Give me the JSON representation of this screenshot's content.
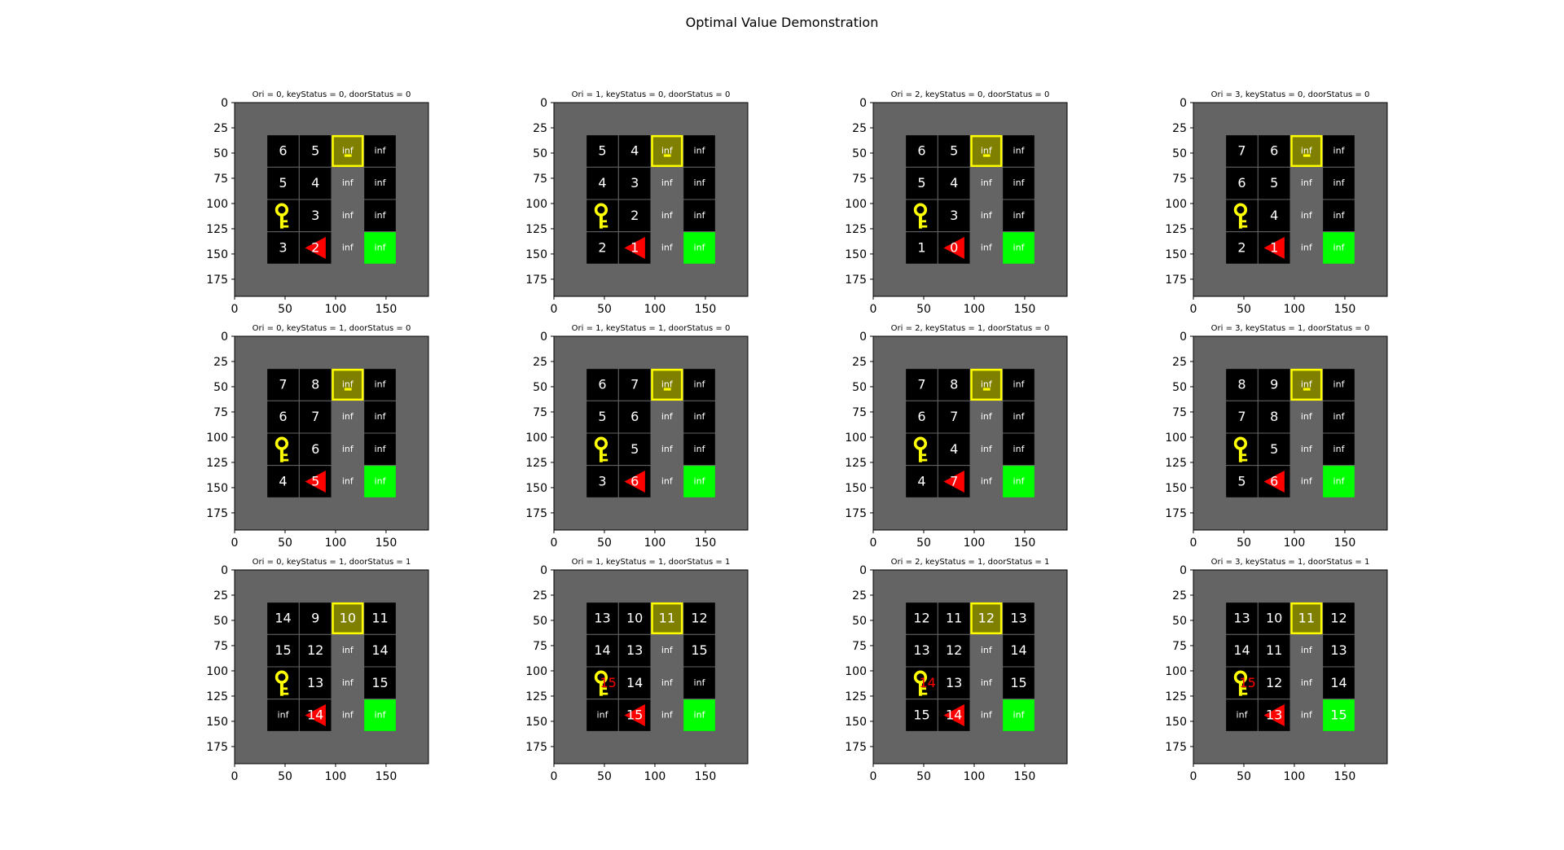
{
  "figure": {
    "title": "Optimal Value Demonstration"
  },
  "colors": {
    "background": "#ffffff",
    "wall": "#646464",
    "floor": "#000000",
    "grid_line": "#646464",
    "door_fill": "#7f7f00",
    "door_border": "#ffff00",
    "goal": "#00ff00",
    "agent": "#ff0000",
    "key": "#ffff00",
    "text_white": "#ffffff",
    "text_red": "#ff0000"
  },
  "axes": {
    "xticks": [
      "0",
      "50",
      "100",
      "150"
    ],
    "yticks": [
      "0",
      "25",
      "50",
      "75",
      "100",
      "125",
      "150",
      "175"
    ],
    "xlim": [
      0,
      192
    ],
    "ylim": [
      192,
      0
    ]
  },
  "chart_data": [
    {
      "type": "heatmap",
      "title": "Ori = 0, keyStatus = 0, doorStatus = 0",
      "orientation": 0,
      "values": [
        [
          "6",
          "5",
          "inf",
          "inf"
        ],
        [
          "5",
          "4",
          "inf",
          "inf"
        ],
        [
          "",
          "3",
          "inf",
          "inf"
        ],
        [
          "3",
          "2",
          "inf",
          "inf"
        ]
      ]
    },
    {
      "type": "heatmap",
      "title": "Ori = 1, keyStatus = 0, doorStatus = 0",
      "orientation": 1,
      "values": [
        [
          "5",
          "4",
          "inf",
          "inf"
        ],
        [
          "4",
          "3",
          "inf",
          "inf"
        ],
        [
          "",
          "2",
          "inf",
          "inf"
        ],
        [
          "2",
          "1",
          "inf",
          "inf"
        ]
      ]
    },
    {
      "type": "heatmap",
      "title": "Ori = 2, keyStatus = 0, doorStatus = 0",
      "orientation": 2,
      "values": [
        [
          "6",
          "5",
          "inf",
          "inf"
        ],
        [
          "5",
          "4",
          "inf",
          "inf"
        ],
        [
          "",
          "3",
          "inf",
          "inf"
        ],
        [
          "1",
          "0",
          "inf",
          "inf"
        ]
      ]
    },
    {
      "type": "heatmap",
      "title": "Ori = 3, keyStatus = 0, doorStatus = 0",
      "orientation": 3,
      "values": [
        [
          "7",
          "6",
          "inf",
          "inf"
        ],
        [
          "6",
          "5",
          "inf",
          "inf"
        ],
        [
          "",
          "4",
          "inf",
          "inf"
        ],
        [
          "2",
          "1",
          "inf",
          "inf"
        ]
      ]
    },
    {
      "type": "heatmap",
      "title": "Ori = 0, keyStatus = 1, doorStatus = 0",
      "orientation": 0,
      "values": [
        [
          "7",
          "8",
          "inf",
          "inf"
        ],
        [
          "6",
          "7",
          "inf",
          "inf"
        ],
        [
          "",
          "6",
          "inf",
          "inf"
        ],
        [
          "4",
          "5",
          "inf",
          "inf"
        ]
      ]
    },
    {
      "type": "heatmap",
      "title": "Ori = 1, keyStatus = 1, doorStatus = 0",
      "orientation": 1,
      "values": [
        [
          "6",
          "7",
          "inf",
          "inf"
        ],
        [
          "5",
          "6",
          "inf",
          "inf"
        ],
        [
          "",
          "5",
          "inf",
          "inf"
        ],
        [
          "3",
          "6",
          "inf",
          "inf"
        ]
      ]
    },
    {
      "type": "heatmap",
      "title": "Ori = 2, keyStatus = 1, doorStatus = 0",
      "orientation": 2,
      "values": [
        [
          "7",
          "8",
          "inf",
          "inf"
        ],
        [
          "6",
          "7",
          "inf",
          "inf"
        ],
        [
          "",
          "4",
          "inf",
          "inf"
        ],
        [
          "4",
          "7",
          "inf",
          "inf"
        ]
      ]
    },
    {
      "type": "heatmap",
      "title": "Ori = 3, keyStatus = 1, doorStatus = 0",
      "orientation": 3,
      "values": [
        [
          "8",
          "9",
          "inf",
          "inf"
        ],
        [
          "7",
          "8",
          "inf",
          "inf"
        ],
        [
          "",
          "5",
          "inf",
          "inf"
        ],
        [
          "5",
          "6",
          "inf",
          "inf"
        ]
      ]
    },
    {
      "type": "heatmap",
      "title": "Ori = 0, keyStatus = 1, doorStatus = 1",
      "orientation": 0,
      "values": [
        [
          "14",
          "9",
          "10",
          "11"
        ],
        [
          "15",
          "12",
          "inf",
          "14"
        ],
        [
          "",
          "13",
          "inf",
          "15"
        ],
        [
          "inf",
          "14",
          "inf",
          "inf"
        ]
      ]
    },
    {
      "type": "heatmap",
      "title": "Ori = 1, keyStatus = 1, doorStatus = 1",
      "orientation": 1,
      "values": [
        [
          "13",
          "10",
          "11",
          "12"
        ],
        [
          "14",
          "13",
          "inf",
          "15"
        ],
        [
          "15",
          "14",
          "inf",
          "inf"
        ],
        [
          "inf",
          "15",
          "inf",
          "inf"
        ]
      ]
    },
    {
      "type": "heatmap",
      "title": "Ori = 2, keyStatus = 1, doorStatus = 1",
      "orientation": 2,
      "values": [
        [
          "12",
          "11",
          "12",
          "13"
        ],
        [
          "13",
          "12",
          "inf",
          "14"
        ],
        [
          "14",
          "13",
          "inf",
          "15"
        ],
        [
          "15",
          "14",
          "inf",
          "inf"
        ]
      ]
    },
    {
      "type": "heatmap",
      "title": "Ori = 3, keyStatus = 1, doorStatus = 1",
      "orientation": 3,
      "values": [
        [
          "13",
          "10",
          "11",
          "12"
        ],
        [
          "14",
          "11",
          "inf",
          "13"
        ],
        [
          "15",
          "12",
          "inf",
          "14"
        ],
        [
          "inf",
          "13",
          "inf",
          "15"
        ]
      ]
    }
  ]
}
